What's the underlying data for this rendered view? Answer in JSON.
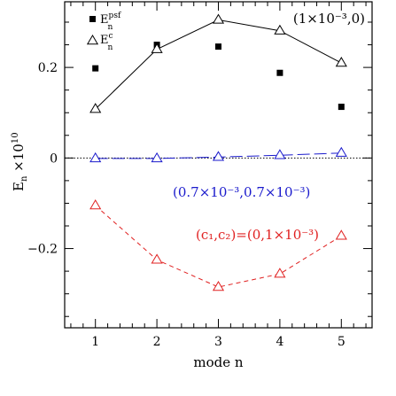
{
  "chart_data": {
    "type": "line",
    "xlabel": "mode n",
    "ylabel": "E_n ×10^10",
    "x": [
      1,
      2,
      3,
      4,
      5
    ],
    "xlim": [
      0.5,
      5.5
    ],
    "ylim": [
      -0.375,
      0.345
    ],
    "xticks": [
      1,
      2,
      3,
      4,
      5
    ],
    "yticks": [
      -0.2,
      0,
      0.2
    ],
    "ytick_labels": [
      "−0.2",
      "0",
      "0.2"
    ],
    "zero_line": true,
    "legend": {
      "placement": "top-left",
      "entries": [
        {
          "marker": "filled-square",
          "label": "E_n^psf"
        },
        {
          "marker": "open-triangle",
          "label": "E_n^c"
        }
      ]
    },
    "series": [
      {
        "id": "s1",
        "marker": "filled-square",
        "line": "none",
        "color": "#000000",
        "values": [
          0.198,
          0.25,
          0.246,
          0.188,
          0.113
        ]
      },
      {
        "id": "s2",
        "marker": "open-triangle",
        "line": "solid",
        "color": "#000000",
        "values": [
          0.108,
          0.24,
          0.305,
          0.281,
          0.21
        ]
      },
      {
        "id": "s3",
        "marker": "open-triangle",
        "line": "long-dash",
        "color": "#1a1acc",
        "values": [
          -0.001,
          -0.001,
          0.002,
          0.006,
          0.011
        ]
      },
      {
        "id": "s4",
        "marker": "open-triangle",
        "line": "short-dash",
        "color": "#e02020",
        "values": [
          -0.105,
          -0.225,
          -0.285,
          -0.256,
          -0.172
        ]
      }
    ],
    "annotations": [
      {
        "series": "s2",
        "text": "(1×10⁻³,0)",
        "color": "#000000"
      },
      {
        "series": "s3",
        "text": "(0.7×10⁻³,0.7×10⁻³)",
        "color": "#1a1acc"
      },
      {
        "series": "s4",
        "text": "(c₁,c₂)=(0,1×10⁻³)",
        "color": "#e02020"
      }
    ]
  }
}
